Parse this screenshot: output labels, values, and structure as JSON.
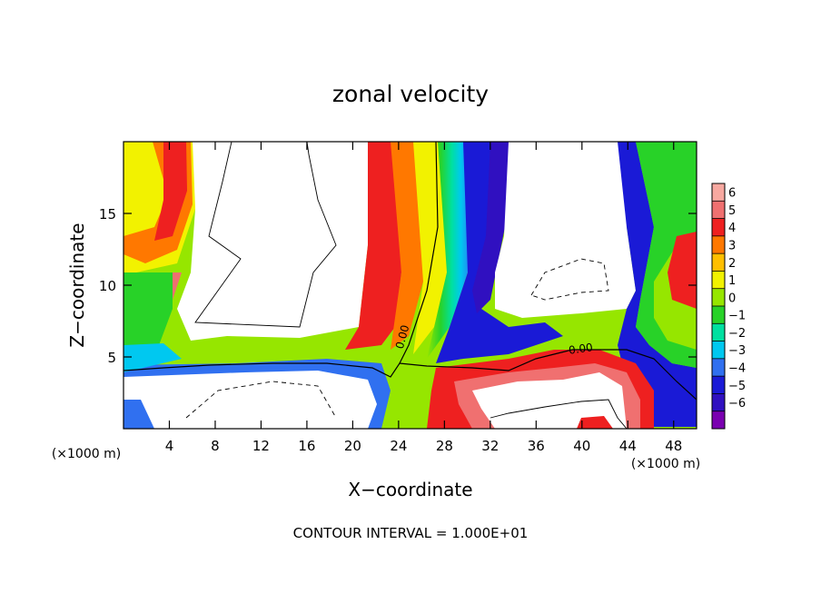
{
  "chart_data": {
    "type": "heatmap",
    "title": "zonal velocity",
    "xlabel": "X−coordinate",
    "ylabel": "Z−coordinate",
    "x_unit_label_left": "(×1000 m)",
    "x_unit_label_right": "(×1000 m)",
    "xlim": [
      0,
      50
    ],
    "ylim": [
      0,
      20
    ],
    "x_ticks": [
      4,
      8,
      12,
      16,
      20,
      24,
      28,
      32,
      36,
      40,
      44,
      48
    ],
    "y_ticks": [
      5,
      10,
      15
    ],
    "footer": "CONTOUR INTERVAL = 1.000E+01",
    "contour_label": "0.00",
    "colorbar": {
      "ticks": [
        "6",
        "5",
        "4",
        "3",
        "2",
        "1",
        "0",
        "−1",
        "−2",
        "−3",
        "−4",
        "−5",
        "−6"
      ],
      "colors": [
        "#f7a8a0",
        "#f07070",
        "#ee2020",
        "#ff7800",
        "#ffbf00",
        "#f2f200",
        "#96e600",
        "#28d228",
        "#00e0a0",
        "#00c8f0",
        "#3070f0",
        "#1a1ad6",
        "#3010c0",
        "#7a00b0"
      ]
    }
  }
}
